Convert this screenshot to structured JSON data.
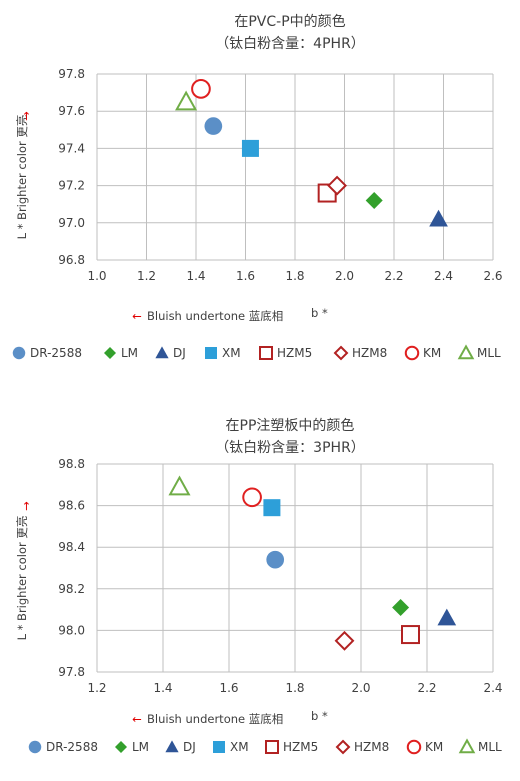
{
  "chart_data": [
    {
      "type": "scatter",
      "title": "在PVC-P中的颜色",
      "subtitle": "（钛白粉含量：4PHR）",
      "xlabel": "Bluish undertone 蓝底相",
      "xlabel_suffix": "b *",
      "ylabel": "L *  Brighter color 更亮",
      "xlim": [
        1.0,
        2.6
      ],
      "ylim": [
        96.8,
        97.8
      ],
      "x_ticks": [
        "1.0",
        "1.2",
        "1.4",
        "1.6",
        "1.8",
        "2.0",
        "2.2",
        "2.4",
        "2.6"
      ],
      "y_ticks": [
        "96.8",
        "97.0",
        "97.2",
        "97.4",
        "97.6",
        "97.8"
      ],
      "grid": true,
      "legend_position": "bottom",
      "series": [
        {
          "name": "DR-2588",
          "marker": "circle-filled",
          "color": "#5b8fc7",
          "x": 1.47,
          "y": 97.52
        },
        {
          "name": "LM",
          "marker": "diamond-filled",
          "color": "#33a02c",
          "x": 2.12,
          "y": 97.12
        },
        {
          "name": "DJ",
          "marker": "triangle-filled",
          "color": "#2f5597",
          "x": 2.38,
          "y": 97.02
        },
        {
          "name": "XM",
          "marker": "square-filled",
          "color": "#2d9fd9",
          "x": 1.62,
          "y": 97.4
        },
        {
          "name": "HZM5",
          "marker": "square-open",
          "color": "#b22222",
          "x": 1.93,
          "y": 97.16
        },
        {
          "name": "HZM8",
          "marker": "diamond-open",
          "color": "#b22222",
          "x": 1.97,
          "y": 97.2
        },
        {
          "name": "KM",
          "marker": "circle-open",
          "color": "#e02020",
          "x": 1.42,
          "y": 97.72
        },
        {
          "name": "MLL",
          "marker": "triangle-open",
          "color": "#70ad47",
          "x": 1.36,
          "y": 97.65
        }
      ]
    },
    {
      "type": "scatter",
      "title": "在PP注塑板中的颜色",
      "subtitle": "（钛白粉含量：3PHR）",
      "xlabel": "Bluish undertone 蓝底相",
      "xlabel_suffix": "b *",
      "ylabel": "L *  Brighter color 更亮",
      "xlim": [
        1.2,
        2.4
      ],
      "ylim": [
        97.8,
        98.8
      ],
      "x_ticks": [
        "1.2",
        "1.4",
        "1.6",
        "1.8",
        "2.0",
        "2.2",
        "2.4"
      ],
      "y_ticks": [
        "97.8",
        "98.0",
        "98.2",
        "98.4",
        "98.6",
        "98.8"
      ],
      "grid": true,
      "legend_position": "bottom",
      "series": [
        {
          "name": "DR-2588",
          "marker": "circle-filled",
          "color": "#5b8fc7",
          "x": 1.74,
          "y": 98.34
        },
        {
          "name": "LM",
          "marker": "diamond-filled",
          "color": "#33a02c",
          "x": 2.12,
          "y": 98.11
        },
        {
          "name": "DJ",
          "marker": "triangle-filled",
          "color": "#2f5597",
          "x": 2.26,
          "y": 98.06
        },
        {
          "name": "XM",
          "marker": "square-filled",
          "color": "#2d9fd9",
          "x": 1.73,
          "y": 98.59
        },
        {
          "name": "HZM5",
          "marker": "square-open",
          "color": "#b22222",
          "x": 2.15,
          "y": 97.98
        },
        {
          "name": "HZM8",
          "marker": "diamond-open",
          "color": "#b22222",
          "x": 1.95,
          "y": 97.95
        },
        {
          "name": "KM",
          "marker": "circle-open",
          "color": "#e02020",
          "x": 1.67,
          "y": 98.64
        },
        {
          "name": "MLL",
          "marker": "triangle-open",
          "color": "#70ad47",
          "x": 1.45,
          "y": 98.69
        }
      ]
    }
  ]
}
